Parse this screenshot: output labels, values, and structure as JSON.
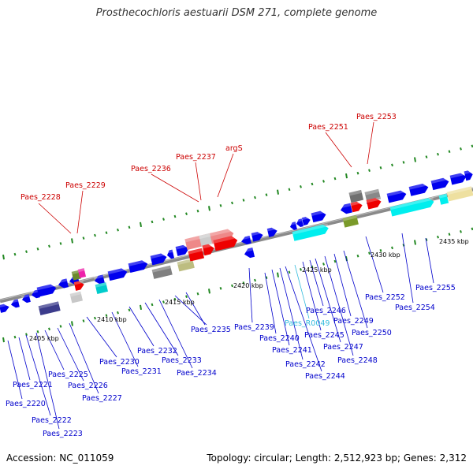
{
  "title": "Prosthecochloris aestuarii DSM 271, complete genome",
  "footer": {
    "accession": "Accession: NC_011059",
    "summary": "Topology: circular; Length: 2,512,923 bp; Genes: 2,312"
  },
  "colors": {
    "cds_label": "#0000cc",
    "rna_label": "#33bbdd",
    "highlight_label": "#cc0000",
    "axis": "#888888",
    "tick": "#228822"
  },
  "kbp_ticks": [
    {
      "text": "2405 kbp"
    },
    {
      "text": "2410 kbp"
    },
    {
      "text": "2415 kbp"
    },
    {
      "text": "2420 kbp"
    },
    {
      "text": "2425 kbp"
    },
    {
      "text": "2430 kbp"
    },
    {
      "text": "2435 kbp"
    }
  ],
  "upper_labels": [
    {
      "text": "Paes_2228"
    },
    {
      "text": "Paes_2229"
    },
    {
      "text": "Paes_2236"
    },
    {
      "text": "Paes_2237"
    },
    {
      "text": "argS"
    },
    {
      "text": "Paes_2251"
    },
    {
      "text": "Paes_2253"
    }
  ],
  "lower_labels": [
    {
      "text": "Paes_2220"
    },
    {
      "text": "Paes_2221"
    },
    {
      "text": "Paes_2222"
    },
    {
      "text": "Paes_2223"
    },
    {
      "text": "Paes_2225"
    },
    {
      "text": "Paes_2226"
    },
    {
      "text": "Paes_2227"
    },
    {
      "text": "Paes_2230"
    },
    {
      "text": "Paes_2231"
    },
    {
      "text": "Paes_2232"
    },
    {
      "text": "Paes_2233"
    },
    {
      "text": "Paes_2234"
    },
    {
      "text": "Paes_2235"
    },
    {
      "text": "Paes_2239"
    },
    {
      "text": "Paes_2240"
    },
    {
      "text": "Paes_2241"
    },
    {
      "text": "Paes_2242"
    },
    {
      "text": "Paes_2244"
    },
    {
      "text": "Paes_R0049"
    },
    {
      "text": "Paes_2245"
    },
    {
      "text": "Paes_2246"
    },
    {
      "text": "Paes_2247"
    },
    {
      "text": "Paes_2248"
    },
    {
      "text": "Paes_2249"
    },
    {
      "text": "Paes_2250"
    },
    {
      "text": "Paes_2252"
    },
    {
      "text": "Paes_2254"
    },
    {
      "text": "Paes_2255"
    }
  ]
}
